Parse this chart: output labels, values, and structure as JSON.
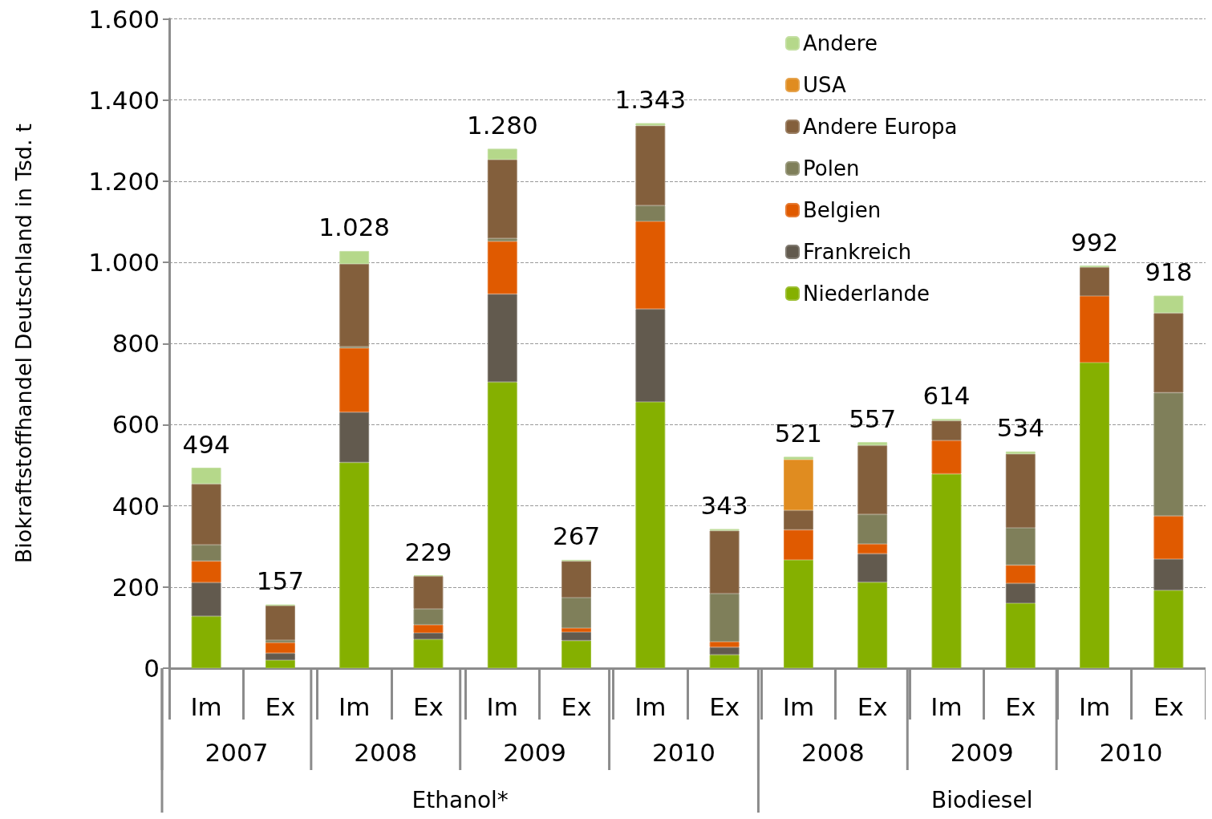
{
  "chart_data": {
    "type": "bar",
    "stacked": true,
    "ylabel": "Biokraftstoffhandel Deutschland in Tsd. t",
    "categories": [
      "Im",
      "Ex",
      "Im",
      "Ex",
      "Im",
      "Ex",
      "Im",
      "Ex",
      "Im",
      "Ex",
      "Im",
      "Ex",
      "Im",
      "Ex"
    ],
    "series": [
      {
        "name": "Niederlande",
        "color": "#85b000",
        "values": [
          128,
          20,
          507,
          71,
          705,
          68,
          656,
          33,
          267,
          212,
          479,
          160,
          753,
          192
        ]
      },
      {
        "name": "Frankreich",
        "color": "#625a4e",
        "values": [
          83,
          17,
          124,
          16,
          217,
          21,
          229,
          19,
          0,
          70,
          0,
          49,
          0,
          77
        ]
      },
      {
        "name": "Belgien",
        "color": "#e05a00",
        "values": [
          53,
          26,
          158,
          20,
          130,
          10,
          216,
          13,
          74,
          24,
          82,
          45,
          164,
          106
        ]
      },
      {
        "name": "Polen",
        "color": "#7f7f5a",
        "values": [
          40,
          6,
          3,
          39,
          7,
          75,
          39,
          119,
          0,
          73,
          0,
          92,
          0,
          304
        ]
      },
      {
        "name": "Andere Europa",
        "color": "#835f3c",
        "values": [
          150,
          85,
          204,
          81,
          194,
          90,
          197,
          155,
          48,
          170,
          49,
          182,
          71,
          196
        ]
      },
      {
        "name": "USA",
        "color": "#e08c20",
        "values": [
          0,
          0,
          0,
          0,
          0,
          0,
          0,
          0,
          125,
          0,
          0,
          0,
          0,
          0
        ]
      },
      {
        "name": "Andere",
        "color": "#b5d88a",
        "values": [
          40,
          3,
          32,
          2,
          27,
          3,
          6,
          4,
          7,
          8,
          4,
          6,
          4,
          43
        ]
      }
    ],
    "totals": [
      "494",
      "157",
      "1.028",
      "229",
      "1.280",
      "267",
      "1.343",
      "343",
      "521",
      "557",
      "614",
      "534",
      "992",
      "918"
    ],
    "ylim": [
      0,
      1600
    ],
    "yticks": [
      0,
      {
        "value": 200,
        "label": "200"
      },
      {
        "value": 400,
        "label": "400"
      },
      {
        "value": 600,
        "label": "600"
      },
      {
        "value": 800,
        "label": "800"
      },
      {
        "value": 1000,
        "label": "1.000"
      },
      {
        "value": 1200,
        "label": "1.200"
      },
      {
        "value": 1400,
        "label": "1.400"
      },
      {
        "value": 1600,
        "label": "1.600"
      }
    ],
    "annotations": [
      "2007",
      "2008",
      "2009",
      "2010",
      "2008",
      "2009",
      "2010",
      "Ethanol*",
      "Biodiesel"
    ],
    "grid": "y",
    "legend": "top right"
  }
}
